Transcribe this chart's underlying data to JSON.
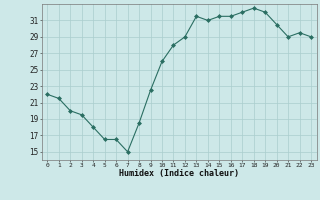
{
  "x": [
    0,
    1,
    2,
    3,
    4,
    5,
    6,
    7,
    8,
    9,
    10,
    11,
    12,
    13,
    14,
    15,
    16,
    17,
    18,
    19,
    20,
    21,
    22,
    23
  ],
  "y": [
    22,
    21.5,
    20,
    19.5,
    18,
    16.5,
    16.5,
    15,
    18.5,
    22.5,
    26,
    28,
    29,
    31.5,
    31,
    31.5,
    31.5,
    32,
    32.5,
    32,
    30.5,
    29,
    29.5,
    29
  ],
  "line_color": "#2a6e62",
  "marker_color": "#2a6e62",
  "bg_color": "#cde8e8",
  "grid_color": "#aacece",
  "xlabel": "Humidex (Indice chaleur)",
  "yticks": [
    15,
    17,
    19,
    21,
    23,
    25,
    27,
    29,
    31
  ],
  "ylim": [
    14.0,
    33.0
  ],
  "xlim": [
    -0.5,
    23.5
  ]
}
